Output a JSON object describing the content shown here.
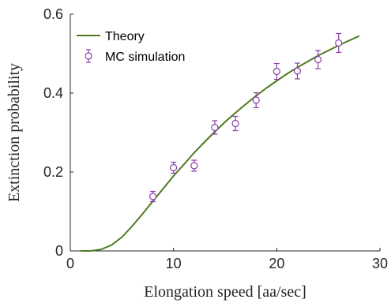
{
  "chart_data": {
    "type": "line",
    "title": "",
    "xlabel": "Elongation speed [aa/sec]",
    "ylabel": "Extinction probability",
    "xlim": [
      0,
      30
    ],
    "ylim": [
      0,
      0.6
    ],
    "xticks": [
      0,
      10,
      20,
      30
    ],
    "xtick_labels": [
      "0",
      "10",
      "20",
      "30"
    ],
    "yticks": [
      0,
      0.2,
      0.4,
      0.6
    ],
    "ytick_labels": [
      "0",
      "0.2",
      "0.4",
      "0.6"
    ],
    "grid": false,
    "legend_position": "top-left",
    "series": [
      {
        "name": "Theory",
        "kind": "line",
        "color": "#4d7a1f",
        "x": [
          1,
          2,
          3,
          4,
          5,
          6,
          7,
          8,
          9,
          10,
          11,
          12,
          13,
          14,
          15,
          16,
          17,
          18,
          19,
          20,
          21,
          22,
          23,
          24,
          25,
          26,
          27,
          28
        ],
        "y": [
          0.0,
          0.0,
          0.004,
          0.015,
          0.035,
          0.063,
          0.094,
          0.126,
          0.158,
          0.19,
          0.219,
          0.249,
          0.276,
          0.302,
          0.327,
          0.35,
          0.372,
          0.393,
          0.413,
          0.431,
          0.449,
          0.465,
          0.48,
          0.495,
          0.508,
          0.521,
          0.533,
          0.545
        ]
      },
      {
        "name": "MC simulation",
        "kind": "errorbar",
        "color": "#8a3fa8",
        "x": [
          8,
          10,
          12,
          14,
          16,
          18,
          20,
          22,
          24,
          26
        ],
        "y": [
          0.138,
          0.211,
          0.216,
          0.313,
          0.323,
          0.382,
          0.455,
          0.456,
          0.485,
          0.527
        ],
        "err": [
          0.013,
          0.014,
          0.014,
          0.017,
          0.018,
          0.019,
          0.02,
          0.02,
          0.023,
          0.024
        ]
      }
    ]
  }
}
